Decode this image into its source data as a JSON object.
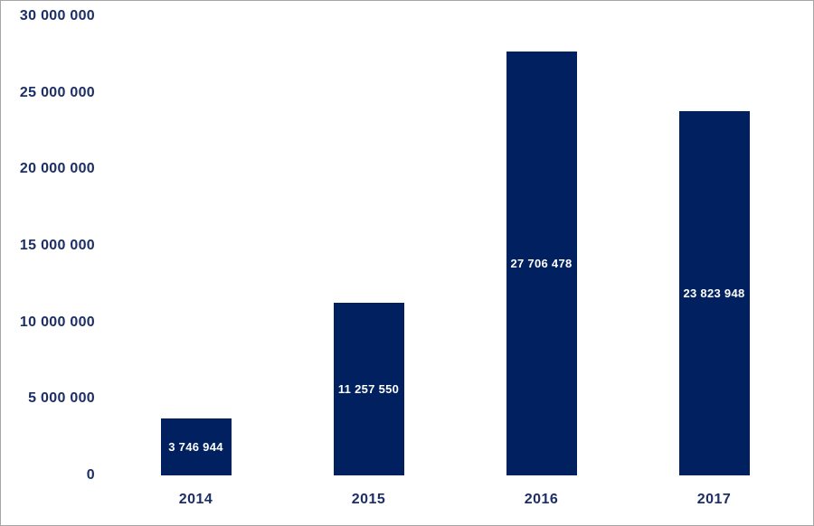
{
  "chart_data": {
    "type": "bar",
    "categories": [
      "2014",
      "2015",
      "2016",
      "2017"
    ],
    "values": [
      3746944,
      11257550,
      27706478,
      23823948
    ],
    "value_labels": [
      "3 746 944",
      "11 257 550",
      "27 706 478",
      "23 823 948"
    ],
    "y_tick_values": [
      0,
      5000000,
      10000000,
      15000000,
      20000000,
      25000000,
      30000000
    ],
    "y_tick_labels": [
      "0",
      "5 000 000",
      "10 000 000",
      "15 000 000",
      "20 000 000",
      "25 000 000",
      "30 000 000"
    ],
    "ylim": [
      0,
      30000000
    ],
    "grid": false,
    "legend": false,
    "value_label_position": "center-inside",
    "colors": {
      "bar": "#002060",
      "value_label": "#ffffff",
      "axis_text": "#1c2e66",
      "frame_border": "#a6a6a6",
      "background": "#ffffff"
    }
  }
}
